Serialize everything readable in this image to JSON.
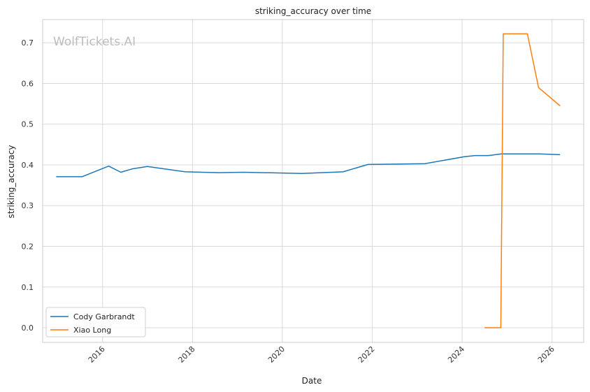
{
  "watermark": "WolfTickets.AI",
  "chart_data": {
    "type": "line",
    "title": "striking_accuracy over time",
    "xlabel": "Date",
    "ylabel": "striking_accuracy",
    "x_ticks": [
      "2016",
      "2018",
      "2020",
      "2022",
      "2024",
      "2026"
    ],
    "y_ticks": [
      "0.0",
      "0.1",
      "0.2",
      "0.3",
      "0.4",
      "0.5",
      "0.6",
      "0.7"
    ],
    "xlim": [
      "2014-09-01",
      "2026-09-15"
    ],
    "ylim": [
      -0.036,
      0.757
    ],
    "grid": true,
    "legend_position": "lower-left",
    "series": [
      {
        "name": "Cody Garbrandt",
        "color": "#1f77b4",
        "points": [
          {
            "x": "2014-12-20",
            "y": 0.371
          },
          {
            "x": "2015-07-18",
            "y": 0.371
          },
          {
            "x": "2016-02-20",
            "y": 0.397
          },
          {
            "x": "2016-05-28",
            "y": 0.382
          },
          {
            "x": "2016-08-27",
            "y": 0.39
          },
          {
            "x": "2016-12-30",
            "y": 0.396
          },
          {
            "x": "2017-11-04",
            "y": 0.383
          },
          {
            "x": "2018-08-04",
            "y": 0.381
          },
          {
            "x": "2019-02-16",
            "y": 0.382
          },
          {
            "x": "2020-06-06",
            "y": 0.379
          },
          {
            "x": "2021-05-08",
            "y": 0.383
          },
          {
            "x": "2021-11-26",
            "y": 0.401
          },
          {
            "x": "2023-03-04",
            "y": 0.403
          },
          {
            "x": "2024-01-20",
            "y": 0.42
          },
          {
            "x": "2024-04-13",
            "y": 0.423
          },
          {
            "x": "2024-08-03",
            "y": 0.423
          },
          {
            "x": "2024-11-15",
            "y": 0.427
          },
          {
            "x": "2025-09-20",
            "y": 0.427
          },
          {
            "x": "2026-03-07",
            "y": 0.425
          }
        ]
      },
      {
        "name": "Xiao Long",
        "color": "#ff7f0e",
        "points": [
          {
            "x": "2024-07-01",
            "y": 0.0
          },
          {
            "x": "2024-11-10",
            "y": 0.0
          },
          {
            "x": "2024-11-30",
            "y": 0.722
          },
          {
            "x": "2025-06-14",
            "y": 0.722
          },
          {
            "x": "2025-09-13",
            "y": 0.59
          },
          {
            "x": "2026-03-07",
            "y": 0.545
          }
        ]
      }
    ]
  }
}
